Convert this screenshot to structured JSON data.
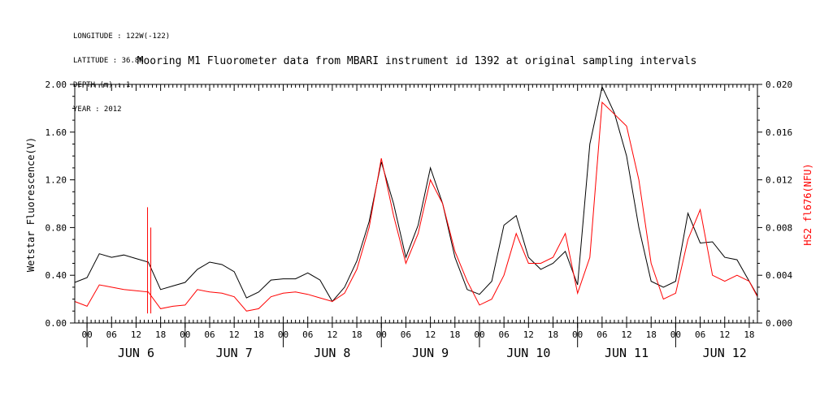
{
  "meta": {
    "longitude": "LONGITUDE : 122W(-122)",
    "latitude": "LATITUDE : 36.8N",
    "depth": "DEPTH (m) : 1",
    "year": "YEAR : 2012"
  },
  "chart_data": {
    "type": "line",
    "title": "Mooring M1 Fluorometer data from MBARI instrument id 1392 at original sampling intervals",
    "xlabel": "",
    "ylabel_left": "Wetstar Fluorescence(V)",
    "ylabel_right": "HS2 fl676(NFU)",
    "ylim_left": [
      0,
      2.0
    ],
    "ylim_right": [
      0,
      0.02
    ],
    "yticks_left": [
      "0.00",
      "0.40",
      "0.80",
      "1.20",
      "1.60",
      "2.00"
    ],
    "yticks_right": [
      "0.000",
      "0.004",
      "0.008",
      "0.012",
      "0.016",
      "0.020"
    ],
    "xlim_hours": [
      -3,
      164
    ],
    "hour_ticks": [
      "00",
      "06",
      "12",
      "18"
    ],
    "day_labels": [
      "JUN  6",
      "JUN  7",
      "JUN  8",
      "JUN  9",
      "JUN 10",
      "JUN 11",
      "JUN 12"
    ],
    "series": [
      {
        "name": "Wetstar Fluorescence(V)",
        "axis": "left",
        "color": "#000000",
        "x": [
          -3,
          0,
          3,
          6,
          9,
          12,
          15,
          18,
          21,
          24,
          27,
          30,
          33,
          36,
          39,
          42,
          45,
          48,
          51,
          54,
          57,
          60,
          63,
          66,
          69,
          72,
          75,
          78,
          81,
          84,
          87,
          90,
          93,
          96,
          99,
          102,
          105,
          108,
          111,
          114,
          117,
          120,
          123,
          126,
          129,
          132,
          135,
          138,
          141,
          144,
          147,
          150,
          153,
          156,
          159,
          162,
          164
        ],
        "y": [
          0.34,
          0.38,
          0.58,
          0.55,
          0.57,
          0.54,
          0.51,
          0.28,
          0.31,
          0.34,
          0.45,
          0.51,
          0.49,
          0.43,
          0.21,
          0.26,
          0.36,
          0.37,
          0.37,
          0.42,
          0.36,
          0.18,
          0.3,
          0.52,
          0.85,
          1.35,
          1.0,
          0.55,
          0.82,
          1.3,
          1.0,
          0.55,
          0.28,
          0.24,
          0.35,
          0.82,
          0.9,
          0.55,
          0.45,
          0.5,
          0.6,
          0.32,
          1.5,
          1.98,
          1.76,
          1.4,
          0.8,
          0.35,
          0.3,
          0.35,
          0.92,
          0.67,
          0.68,
          0.55,
          0.53,
          0.35,
          0.23
        ]
      },
      {
        "name": "HS2 fl676(NFU)",
        "axis": "right",
        "color": "#ff0000",
        "x": [
          -3,
          0,
          3,
          6,
          9,
          12,
          15,
          18,
          21,
          24,
          27,
          30,
          33,
          36,
          39,
          42,
          45,
          48,
          51,
          54,
          57,
          60,
          63,
          66,
          69,
          72,
          75,
          78,
          81,
          84,
          87,
          90,
          93,
          96,
          99,
          102,
          105,
          108,
          111,
          114,
          117,
          120,
          123,
          126,
          129,
          132,
          135,
          138,
          141,
          144,
          147,
          150,
          153,
          156,
          159,
          162,
          164
        ],
        "y": [
          0.0018,
          0.0014,
          0.0032,
          0.003,
          0.0028,
          0.0027,
          0.0026,
          0.0012,
          0.0014,
          0.0015,
          0.0028,
          0.0026,
          0.0025,
          0.0022,
          0.001,
          0.0012,
          0.0022,
          0.0025,
          0.0026,
          0.0024,
          0.0021,
          0.0018,
          0.0025,
          0.0045,
          0.008,
          0.0138,
          0.009,
          0.005,
          0.0075,
          0.012,
          0.01,
          0.006,
          0.0035,
          0.0015,
          0.002,
          0.004,
          0.0075,
          0.005,
          0.005,
          0.0055,
          0.0075,
          0.0025,
          0.0055,
          0.0185,
          0.0175,
          0.0165,
          0.012,
          0.005,
          0.002,
          0.0025,
          0.007,
          0.0095,
          0.004,
          0.0035,
          0.004,
          0.0035,
          0.0022
        ]
      }
    ],
    "red_spikes": [
      {
        "x": 14.8,
        "y": 0.0097
      },
      {
        "x": 15.6,
        "y": 0.008
      }
    ]
  }
}
